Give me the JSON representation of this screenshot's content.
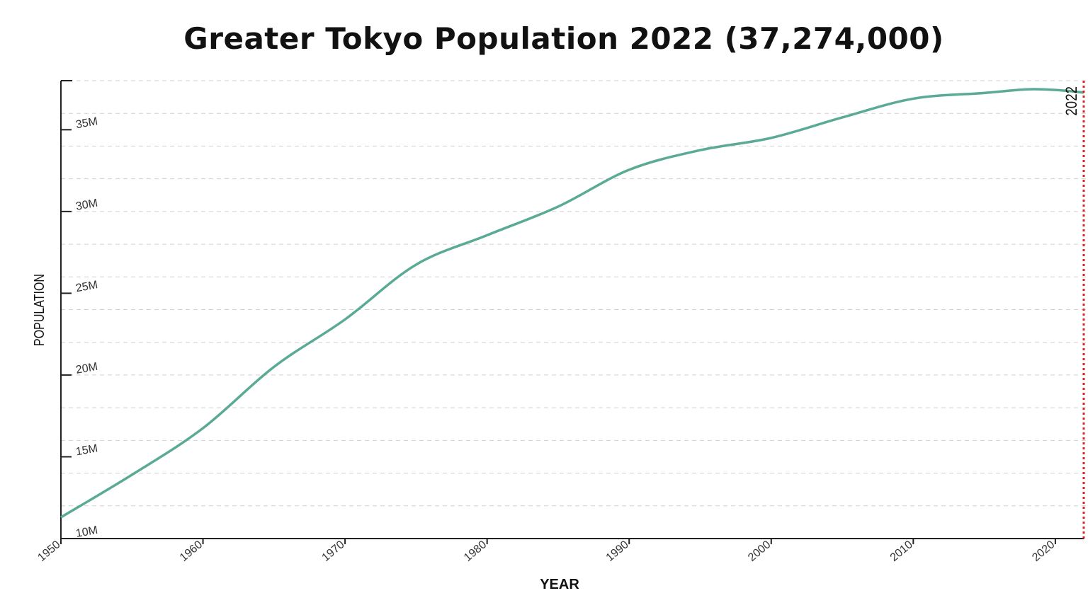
{
  "chart_data": {
    "type": "line",
    "title": "Greater Tokyo Population 2022 (37,274,000)",
    "xlabel": "YEAR",
    "ylabel": "POPULATION",
    "xlim": [
      1950,
      2022
    ],
    "ylim": [
      10000000,
      38000000
    ],
    "x_ticks": [
      1950,
      1960,
      1970,
      1980,
      1990,
      2000,
      2010,
      2020
    ],
    "x_tick_labels": [
      "1950",
      "1960",
      "1970",
      "1980",
      "1990",
      "2000",
      "2010",
      "2020"
    ],
    "y_ticks": [
      10000000,
      15000000,
      20000000,
      25000000,
      30000000,
      35000000
    ],
    "y_tick_labels": [
      "10M",
      "15M",
      "20M",
      "25M",
      "30M",
      "35M"
    ],
    "grid": "horizontal dashed, every 2M",
    "series": [
      {
        "color": "#5aaa96",
        "x": [
          1950,
          1955,
          1960,
          1965,
          1970,
          1975,
          1980,
          1985,
          1990,
          1995,
          2000,
          2005,
          2010,
          2015,
          2018,
          2020,
          2022
        ],
        "y": [
          11300000,
          13900000,
          16750000,
          20500000,
          23400000,
          26750000,
          28550000,
          30300000,
          32550000,
          33750000,
          34500000,
          35750000,
          36900000,
          37250000,
          37470000,
          37430000,
          37274000
        ]
      }
    ],
    "annotations": [
      {
        "type": "vertical-line",
        "x": 2022,
        "label": "2022",
        "color": "#e02020",
        "style": "dotted"
      }
    ]
  }
}
